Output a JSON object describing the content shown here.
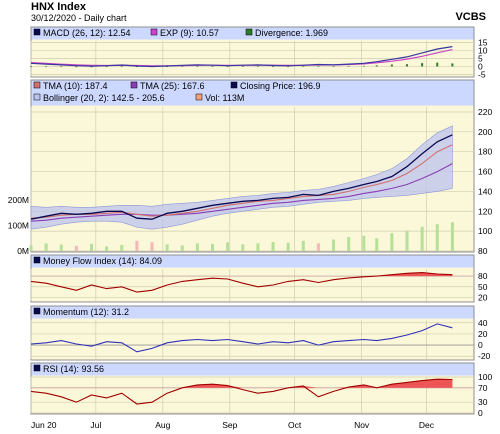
{
  "header": {
    "title": "HNX Index",
    "subtitle": "30/12/2020 - Daily chart",
    "brand": "VCBS"
  },
  "colors": {
    "panel_bg": "#fbf8d9",
    "legend_bg": "#ccd8ff",
    "grid": "#d0cdb0",
    "border": "#8f8f8f",
    "price": "#0a0a50",
    "tma_short": "#d27070",
    "tma_long": "#8a3fb5",
    "bollinger_fill": "#bcc3ee",
    "volume": "#b6df98",
    "volume_down": "#f2b8b8",
    "mfi": "#a00000",
    "mfi_fill": "#ee5555",
    "momentum": "#3030b8",
    "rsi": "#a00000",
    "rsi_fill": "#ee5555",
    "macd": "#3a36a0",
    "exp": "#cc44cc",
    "divergence": "#2e7d22"
  },
  "chart_data": [
    {
      "id": "macd",
      "type": "line",
      "legend": [
        {
          "label": "MACD (26, 12): 12.54",
          "icon": "square-navy"
        },
        {
          "label": "EXP (9): 10.57",
          "icon": "square-magenta"
        },
        {
          "label": "Divergence: 1.969",
          "icon": "square-green"
        }
      ],
      "ylim": [
        -6,
        16
      ],
      "ticks": [
        "15",
        "10",
        "5",
        "0",
        "-5"
      ],
      "x": [
        0,
        7,
        14,
        21,
        28,
        35,
        42,
        49,
        56,
        63,
        70,
        77,
        84,
        91,
        98,
        105,
        112,
        119,
        126,
        133,
        140,
        147,
        154,
        160,
        167,
        174,
        181,
        188,
        195
      ],
      "macd": [
        2.0,
        1.5,
        1.0,
        0.5,
        0.2,
        0.5,
        0.9,
        0.3,
        0.0,
        0.3,
        0.7,
        1.0,
        0.8,
        0.5,
        0.8,
        1.0,
        0.6,
        0.4,
        0.8,
        1.2,
        1.0,
        1.5,
        2.0,
        3.0,
        4.5,
        6.0,
        8.5,
        11.0,
        12.5
      ],
      "exp": [
        2.4,
        1.9,
        1.4,
        1.0,
        0.7,
        0.6,
        0.7,
        0.6,
        0.4,
        0.4,
        0.5,
        0.7,
        0.8,
        0.7,
        0.7,
        0.8,
        0.8,
        0.7,
        0.7,
        0.9,
        1.0,
        1.2,
        1.6,
        2.3,
        3.3,
        4.6,
        6.4,
        8.6,
        10.6
      ]
    },
    {
      "id": "price",
      "type": "line",
      "legend": [
        {
          "label": "TMA (10): 187.4",
          "icon": "square-pink"
        },
        {
          "label": "TMA (25): 167.6",
          "icon": "square-purple"
        },
        {
          "label": "Closing Price: 196.9",
          "icon": "square-navy"
        },
        {
          "label": "Bollinger (20, 2): 142.5 - 205.6",
          "icon": "square-lavender"
        },
        {
          "label": "Vol: 113M",
          "icon": "square-salmon"
        }
      ],
      "ylim": [
        80,
        225
      ],
      "ticks": [
        "220",
        "200",
        "180",
        "160",
        "140",
        "120",
        "100",
        "80"
      ],
      "volume_ticks": [
        "200M",
        "100M",
        "0M"
      ],
      "volume_max": "200M",
      "x": [
        0,
        7,
        14,
        21,
        28,
        35,
        42,
        49,
        56,
        63,
        70,
        77,
        84,
        91,
        98,
        105,
        112,
        119,
        126,
        133,
        140,
        147,
        154,
        160,
        167,
        174,
        181,
        188,
        195
      ],
      "close": [
        112,
        115,
        118,
        117,
        118,
        120,
        120,
        113,
        112,
        118,
        120,
        123,
        126,
        128,
        130,
        131,
        133,
        134,
        137,
        136,
        140,
        143,
        147,
        150,
        155,
        165,
        178,
        190,
        197
      ],
      "tma10": [
        113,
        114,
        116,
        117,
        117,
        118,
        119,
        117,
        115,
        116,
        118,
        120,
        123,
        126,
        128,
        130,
        131,
        133,
        135,
        136,
        137,
        140,
        144,
        147,
        151,
        158,
        168,
        180,
        187
      ],
      "tma25": [
        110,
        111,
        113,
        114,
        115,
        116,
        117,
        117,
        116,
        116,
        117,
        118,
        120,
        122,
        124,
        126,
        128,
        129,
        131,
        132,
        133,
        135,
        138,
        140,
        143,
        147,
        153,
        160,
        168
      ],
      "boll_upper": [
        125,
        124,
        125,
        124,
        124,
        125,
        126,
        126,
        125,
        127,
        128,
        129,
        131,
        133,
        135,
        136,
        138,
        139,
        141,
        142,
        145,
        149,
        153,
        157,
        163,
        173,
        187,
        199,
        206
      ],
      "boll_lower": [
        102,
        104,
        107,
        109,
        110,
        110,
        109,
        104,
        102,
        104,
        107,
        111,
        115,
        118,
        120,
        122,
        124,
        125,
        127,
        129,
        130,
        131,
        133,
        134,
        135,
        136,
        138,
        140,
        143
      ],
      "volume": [
        22,
        30,
        25,
        20,
        28,
        18,
        24,
        40,
        35,
        26,
        22,
        30,
        28,
        34,
        26,
        30,
        35,
        32,
        40,
        30,
        45,
        55,
        60,
        50,
        70,
        80,
        95,
        105,
        113
      ]
    },
    {
      "id": "mfi",
      "type": "area",
      "legend": [
        {
          "label": "Money Flow Index (14): 84.09",
          "icon": "square-navy"
        }
      ],
      "ylim": [
        10,
        100
      ],
      "ticks": [
        "80",
        "50",
        "20"
      ],
      "threshold": 80,
      "x": [
        0,
        7,
        14,
        21,
        28,
        35,
        42,
        49,
        56,
        63,
        70,
        77,
        84,
        91,
        98,
        105,
        112,
        119,
        126,
        133,
        140,
        147,
        154,
        160,
        167,
        174,
        181,
        188,
        195
      ],
      "values": [
        65,
        60,
        50,
        40,
        55,
        45,
        50,
        35,
        40,
        55,
        65,
        70,
        74,
        72,
        60,
        50,
        55,
        65,
        70,
        62,
        70,
        75,
        78,
        80,
        84,
        88,
        90,
        86,
        84
      ]
    },
    {
      "id": "momentum",
      "type": "line",
      "legend": [
        {
          "label": "Momentum (12): 31.2",
          "icon": "square-navy"
        }
      ],
      "ylim": [
        -25,
        45
      ],
      "ticks": [
        "40",
        "20",
        "0",
        "-20"
      ],
      "x": [
        0,
        7,
        14,
        21,
        28,
        35,
        42,
        49,
        56,
        63,
        70,
        77,
        84,
        91,
        98,
        105,
        112,
        119,
        126,
        133,
        140,
        147,
        154,
        160,
        167,
        174,
        181,
        188,
        195
      ],
      "values": [
        2,
        4,
        8,
        2,
        -2,
        6,
        4,
        -12,
        -6,
        4,
        8,
        10,
        8,
        10,
        6,
        2,
        6,
        4,
        8,
        0,
        6,
        8,
        10,
        8,
        12,
        18,
        26,
        38,
        31
      ]
    },
    {
      "id": "rsi",
      "type": "area",
      "legend": [
        {
          "label": "RSI (14): 93.56",
          "icon": "square-navy"
        }
      ],
      "ylim": [
        0,
        100
      ],
      "ticks": [
        "100",
        "70",
        "30",
        "0"
      ],
      "threshold": 70,
      "x": [
        0,
        7,
        14,
        21,
        28,
        35,
        42,
        49,
        56,
        63,
        70,
        77,
        84,
        91,
        98,
        105,
        112,
        119,
        126,
        133,
        140,
        147,
        154,
        160,
        167,
        174,
        181,
        188,
        195
      ],
      "values": [
        60,
        55,
        45,
        30,
        50,
        42,
        55,
        25,
        30,
        55,
        70,
        78,
        80,
        76,
        65,
        55,
        60,
        70,
        75,
        45,
        60,
        72,
        78,
        70,
        80,
        85,
        90,
        94,
        93
      ]
    }
  ],
  "x_axis": {
    "labels": [
      {
        "text": "Jun 20",
        "x": 0
      },
      {
        "text": "Jul",
        "x": 30
      },
      {
        "text": "Aug",
        "x": 61
      },
      {
        "text": "Sep",
        "x": 92
      },
      {
        "text": "Oct",
        "x": 122
      },
      {
        "text": "Nov",
        "x": 153
      },
      {
        "text": "Dec",
        "x": 183
      }
    ],
    "xlim": [
      0,
      205
    ]
  }
}
